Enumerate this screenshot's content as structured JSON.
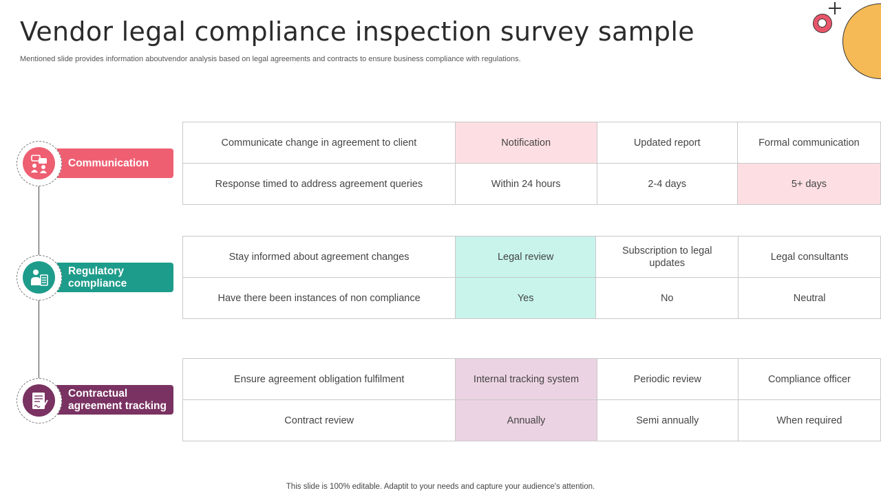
{
  "slide": {
    "title": "Vendor legal compliance inspection survey sample",
    "subtitle": "Mentioned slide provides information aboutvendor analysis based on legal agreements and contracts to ensure business compliance with regulations.",
    "footer": "This slide is 100% editable. Adaptit to your needs and capture your audience's attention."
  },
  "colors": {
    "communication": "#ee5f72",
    "regulatory": "#1e9c8b",
    "contractual": "#7a3262",
    "deco_orange": "#f5b955"
  },
  "sections": [
    {
      "label": "Communication",
      "icon": "people-chat-icon",
      "rows": [
        [
          "Communicate change in agreement to client",
          "Notification",
          "Updated report",
          "Formal communication"
        ],
        [
          "Response timed to address agreement queries",
          "Within 24 hours",
          "2-4 days",
          "5+ days"
        ]
      ]
    },
    {
      "label": "Regulatory compliance",
      "icon": "person-clipboard-icon",
      "rows": [
        [
          "Stay informed about agreement changes",
          "Legal review",
          "Subscription to legal updates",
          "Legal consultants"
        ],
        [
          "Have there been instances of non compliance",
          "Yes",
          "No",
          "Neutral"
        ]
      ]
    },
    {
      "label": "Contractual agreement tracking",
      "icon": "contract-signature-icon",
      "rows": [
        [
          "Ensure agreement obligation fulfilment",
          "Internal tracking system",
          "Periodic review",
          "Compliance officer"
        ],
        [
          "Contract review",
          "Annually",
          "Semi annually",
          "When required"
        ]
      ]
    }
  ]
}
